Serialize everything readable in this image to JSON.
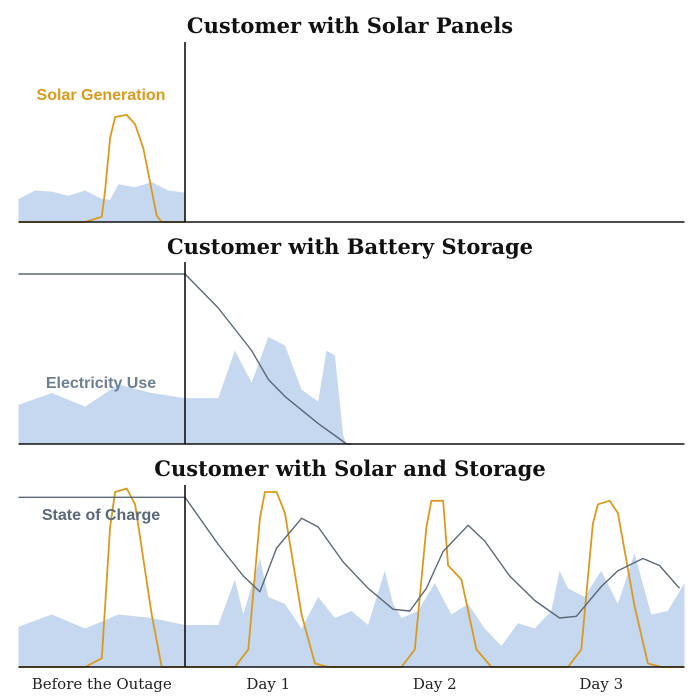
{
  "colors": {
    "solar": "#d99a1e",
    "use_fill": "#c5d8ef",
    "charge": "#5a6878",
    "axis": "#111111",
    "solar_label": "#d99a1e",
    "use_label": "#6d7f92",
    "charge_label": "#5a6878"
  },
  "x_axis": {
    "ticks": [
      "Before the Outage",
      "Day 1",
      "Day 2",
      "Day 3"
    ]
  },
  "panels": [
    {
      "title": "Customer with Solar Panels",
      "label": "Solar Generation"
    },
    {
      "title": "Customer with Battery Storage",
      "label": "Electricity Use"
    },
    {
      "title": "Customer with Solar and Storage",
      "label": "State of Charge"
    }
  ],
  "chart_data": [
    {
      "type": "area",
      "title": "Customer with Solar Panels",
      "x_unit": "days relative to outage start",
      "xlim": [
        -1,
        3
      ],
      "series": [
        {
          "name": "Electricity Use",
          "kind": "area",
          "x": [
            -1,
            -0.9,
            -0.8,
            -0.7,
            -0.6,
            -0.5,
            -0.45,
            -0.4,
            -0.3,
            -0.2,
            -0.1,
            0
          ],
          "y": [
            0.22,
            0.3,
            0.29,
            0.25,
            0.3,
            0.22,
            0.21,
            0.36,
            0.33,
            0.38,
            0.3,
            0.28
          ]
        },
        {
          "name": "Solar Generation",
          "kind": "line",
          "x": [
            -1,
            -0.6,
            -0.5,
            -0.48,
            -0.45,
            -0.42,
            -0.35,
            -0.3,
            -0.25,
            -0.2,
            -0.17,
            -0.14,
            -0.1,
            0
          ],
          "y": [
            0,
            0,
            0.05,
            0.3,
            0.8,
            1.0,
            1.02,
            0.93,
            0.7,
            0.3,
            0.06,
            0,
            0,
            0
          ]
        }
      ]
    },
    {
      "type": "area",
      "title": "Customer with Battery Storage",
      "x_unit": "days relative to outage start",
      "xlim": [
        -1,
        3
      ],
      "series": [
        {
          "name": "Electricity Use",
          "kind": "area",
          "x": [
            -1,
            -0.8,
            -0.6,
            -0.4,
            -0.2,
            0,
            0.2,
            0.3,
            0.4,
            0.5,
            0.6,
            0.7,
            0.8,
            0.85,
            0.9,
            0.95,
            0.97,
            1.0
          ],
          "y": [
            0.23,
            0.3,
            0.22,
            0.35,
            0.3,
            0.27,
            0.27,
            0.55,
            0.36,
            0.63,
            0.58,
            0.32,
            0.25,
            0.55,
            0.52,
            0.05,
            0,
            0
          ]
        },
        {
          "name": "State of Charge",
          "kind": "line",
          "x": [
            -1,
            0,
            0.2,
            0.4,
            0.5,
            0.6,
            0.8,
            0.9,
            0.97,
            1.0
          ],
          "y": [
            1.0,
            1.0,
            0.8,
            0.55,
            0.38,
            0.28,
            0.12,
            0.05,
            0,
            0
          ]
        }
      ]
    },
    {
      "type": "area",
      "title": "Customer with Solar and Storage",
      "x_unit": "days relative to outage start",
      "xlim": [
        -1,
        3
      ],
      "series": [
        {
          "name": "Electricity Use",
          "kind": "area",
          "x": [
            -1,
            -0.8,
            -0.6,
            -0.4,
            -0.2,
            0,
            0.2,
            0.3,
            0.35,
            0.45,
            0.5,
            0.6,
            0.7,
            0.8,
            0.9,
            1.0,
            1.1,
            1.2,
            1.25,
            1.3,
            1.4,
            1.5,
            1.6,
            1.7,
            1.8,
            1.9,
            2.0,
            2.1,
            2.2,
            2.25,
            2.3,
            2.4,
            2.5,
            2.6,
            2.7,
            2.8,
            2.9,
            3.0
          ],
          "y": [
            0.23,
            0.3,
            0.22,
            0.3,
            0.28,
            0.24,
            0.24,
            0.5,
            0.3,
            0.62,
            0.4,
            0.36,
            0.22,
            0.4,
            0.28,
            0.32,
            0.24,
            0.55,
            0.36,
            0.28,
            0.32,
            0.48,
            0.3,
            0.36,
            0.22,
            0.12,
            0.25,
            0.22,
            0.32,
            0.55,
            0.45,
            0.4,
            0.55,
            0.36,
            0.65,
            0.3,
            0.32,
            0.48
          ]
        },
        {
          "name": "Solar Generation",
          "kind": "line",
          "x": [
            -1,
            -0.6,
            -0.5,
            -0.45,
            -0.42,
            -0.35,
            -0.3,
            -0.2,
            -0.14,
            0,
            0.3,
            0.38,
            0.45,
            0.48,
            0.55,
            0.6,
            0.7,
            0.78,
            0.86,
            1.3,
            1.38,
            1.45,
            1.48,
            1.55,
            1.58,
            1.66,
            1.75,
            1.84,
            2.3,
            2.38,
            2.45,
            2.48,
            2.55,
            2.6,
            2.7,
            2.78,
            2.86,
            3.0
          ],
          "y": [
            0,
            0,
            0.05,
            0.8,
            1.0,
            1.02,
            0.93,
            0.3,
            0,
            0,
            0,
            0.1,
            0.85,
            1.0,
            1.0,
            0.88,
            0.3,
            0.02,
            0,
            0,
            0.1,
            0.8,
            0.95,
            0.95,
            0.58,
            0.5,
            0.1,
            0,
            0,
            0.1,
            0.82,
            0.93,
            0.95,
            0.88,
            0.35,
            0.02,
            0,
            0
          ]
        },
        {
          "name": "State of Charge",
          "kind": "line",
          "x": [
            -1,
            0,
            0.2,
            0.35,
            0.45,
            0.55,
            0.7,
            0.8,
            0.95,
            1.1,
            1.25,
            1.35,
            1.45,
            1.55,
            1.7,
            1.8,
            1.95,
            2.1,
            2.25,
            2.35,
            2.5,
            2.6,
            2.75,
            2.85,
            2.97
          ],
          "y": [
            0.97,
            0.97,
            0.7,
            0.52,
            0.43,
            0.68,
            0.85,
            0.8,
            0.6,
            0.45,
            0.33,
            0.32,
            0.45,
            0.66,
            0.81,
            0.72,
            0.52,
            0.38,
            0.28,
            0.29,
            0.46,
            0.55,
            0.62,
            0.58,
            0.45
          ]
        }
      ]
    }
  ]
}
